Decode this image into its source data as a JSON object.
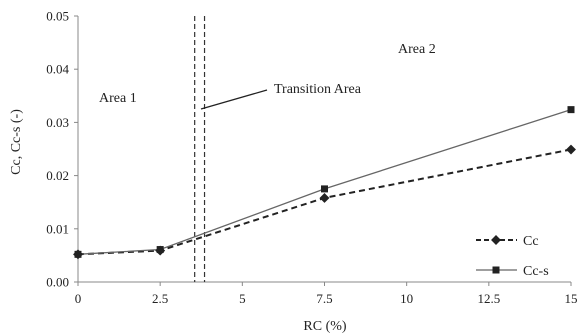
{
  "chart_data": {
    "type": "line",
    "xlabel": "RC (%)",
    "ylabel": "Cc, Cc-s (-)",
    "xlim": [
      0,
      15
    ],
    "ylim": [
      0,
      0.05
    ],
    "xticks": [
      0,
      2.5,
      5,
      7.5,
      10,
      12.5,
      15
    ],
    "xtick_labels": [
      "0",
      "2.5",
      "5",
      "7.5",
      "10",
      "12.5",
      "15"
    ],
    "yticks": [
      0,
      0.01,
      0.02,
      0.03,
      0.04,
      0.05
    ],
    "ytick_labels": [
      "0.00",
      "0.01",
      "0.02",
      "0.03",
      "0.04",
      "0.05"
    ],
    "grid": false,
    "legend": "right",
    "series": [
      {
        "name": "Cc",
        "x": [
          0,
          2.5,
          7.5,
          15
        ],
        "y": [
          0.0052,
          0.0059,
          0.0158,
          0.0249
        ],
        "style": "dashed",
        "marker": "diamond",
        "color": "#222222"
      },
      {
        "name": "Cc-s",
        "x": [
          0,
          2.5,
          7.5,
          15
        ],
        "y": [
          0.0052,
          0.0061,
          0.0175,
          0.0324
        ],
        "style": "solid",
        "marker": "square",
        "color": "#666666"
      }
    ],
    "transition_lines_x": [
      3.55,
      3.85
    ],
    "annotations": {
      "area1": "Area 1",
      "area2": "Area 2",
      "transition": "Transition Area"
    }
  }
}
